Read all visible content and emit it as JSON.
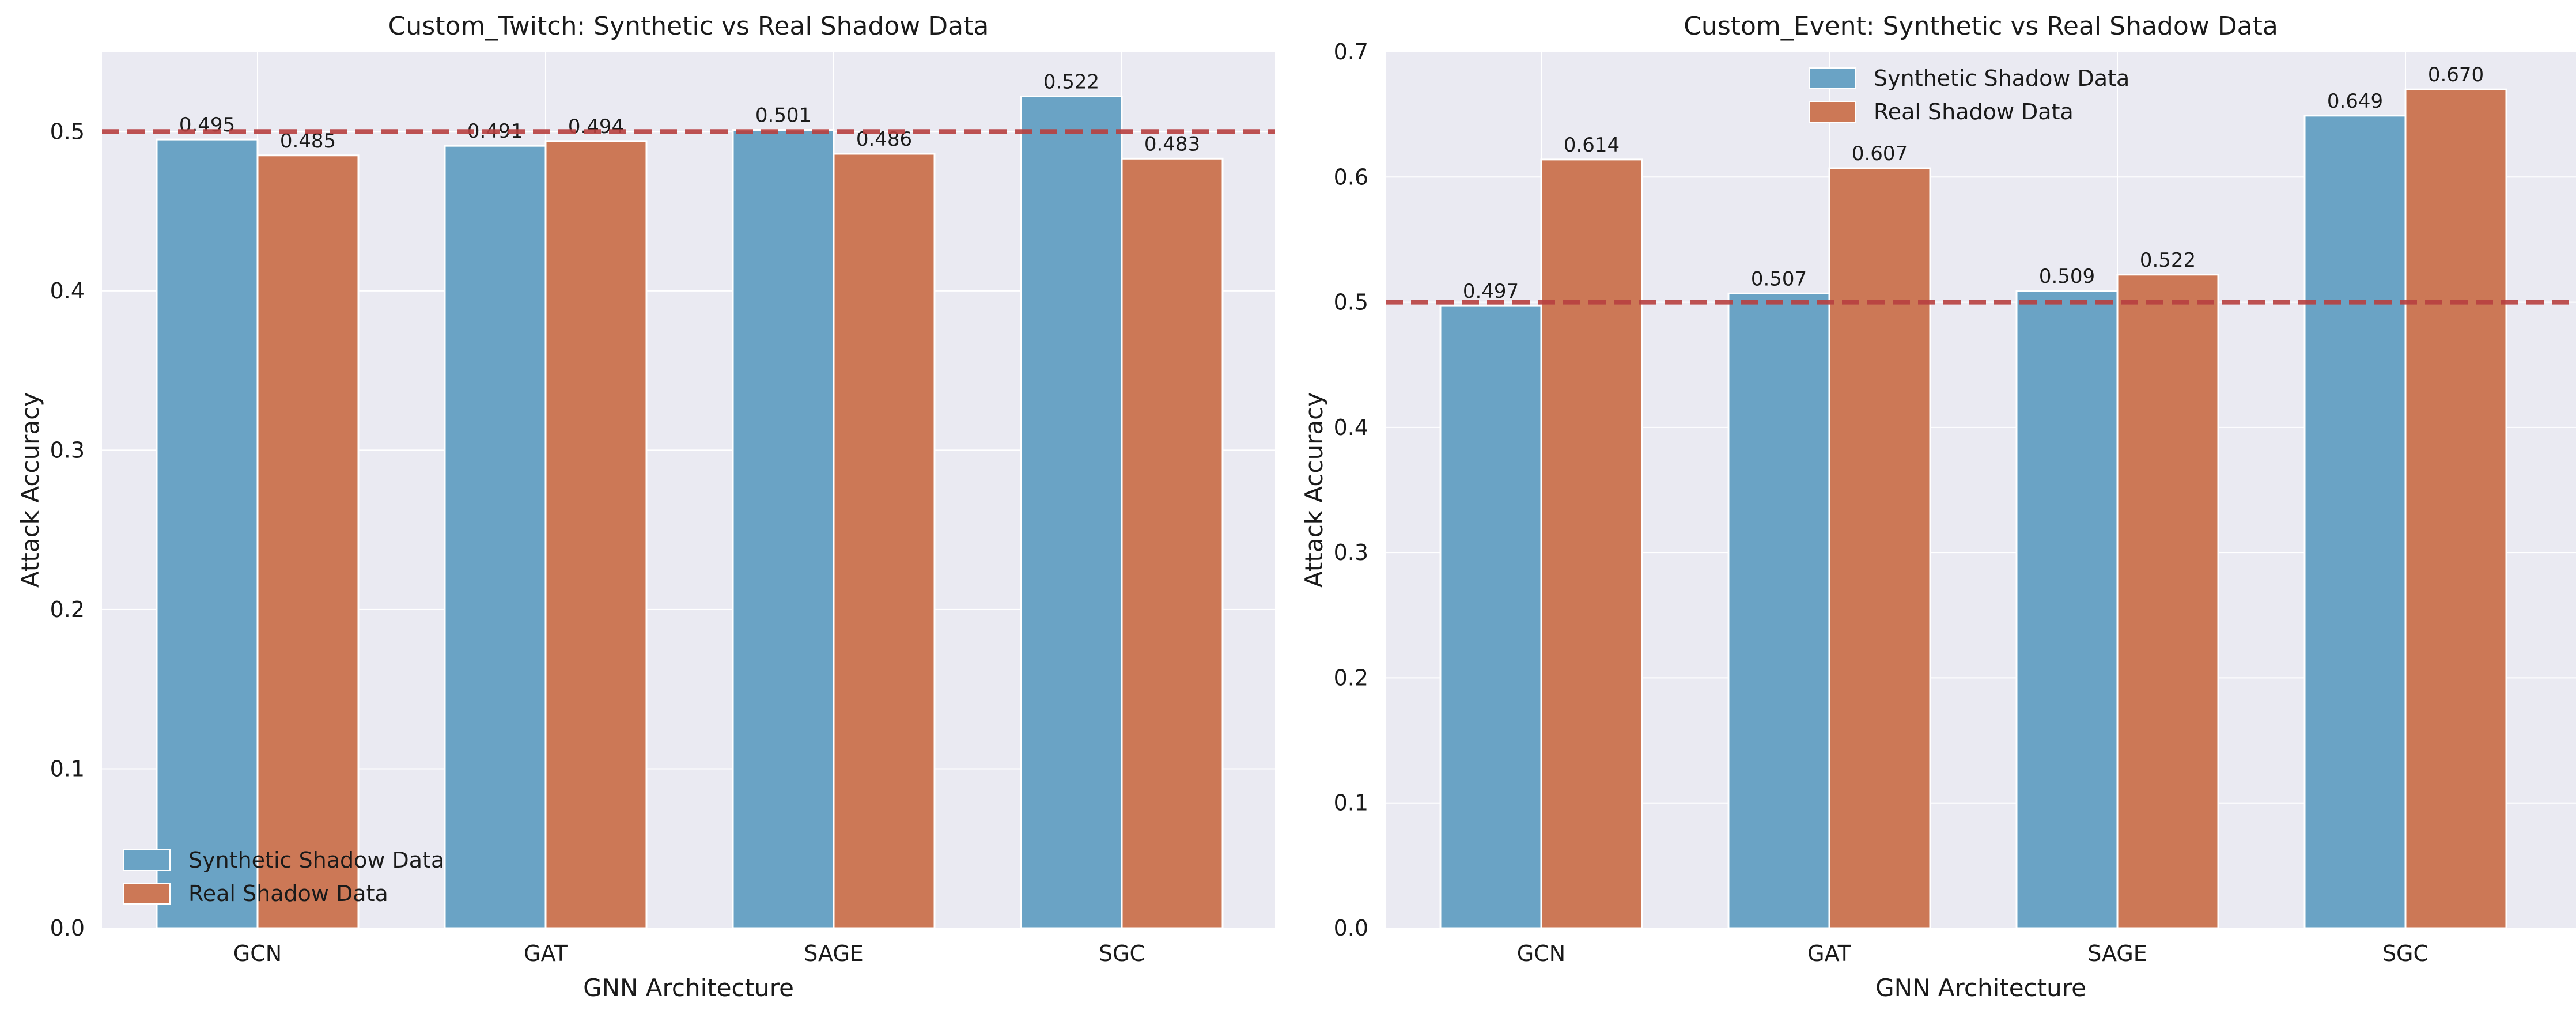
{
  "chart_data": [
    {
      "type": "bar",
      "title": "Custom_Twitch: Synthetic vs Real Shadow Data",
      "xlabel": "GNN Architecture",
      "ylabel": "Attack Accuracy",
      "categories": [
        "GCN",
        "GAT",
        "SAGE",
        "SGC"
      ],
      "series": [
        {
          "name": "Synthetic Shadow Data",
          "values": [
            0.495,
            0.491,
            0.501,
            0.522
          ],
          "labels": [
            "0.495",
            "0.491",
            "0.501",
            "0.522"
          ],
          "color": "#6aa3c5"
        },
        {
          "name": "Real Shadow Data",
          "values": [
            0.485,
            0.494,
            0.486,
            0.483
          ],
          "labels": [
            "0.485",
            "0.494",
            "0.486",
            "0.483"
          ],
          "color": "#cc7856"
        }
      ],
      "ylim": [
        0,
        0.55
      ],
      "yticks": [
        0.0,
        0.1,
        0.2,
        0.3,
        0.4,
        0.5
      ],
      "ytick_labels": [
        "0.0",
        "0.1",
        "0.2",
        "0.3",
        "0.4",
        "0.5"
      ],
      "reference_line": {
        "y": 0.5,
        "color": "#b84040",
        "style": "dashed"
      },
      "grid": true,
      "background": "#eaeaf2",
      "legend_position": "lower-left"
    },
    {
      "type": "bar",
      "title": "Custom_Event: Synthetic vs Real Shadow Data",
      "xlabel": "GNN Architecture",
      "ylabel": "Attack Accuracy",
      "categories": [
        "GCN",
        "GAT",
        "SAGE",
        "SGC"
      ],
      "series": [
        {
          "name": "Synthetic Shadow Data",
          "values": [
            0.497,
            0.507,
            0.509,
            0.649
          ],
          "labels": [
            "0.497",
            "0.507",
            "0.509",
            "0.649"
          ],
          "color": "#6aa3c5"
        },
        {
          "name": "Real Shadow Data",
          "values": [
            0.614,
            0.607,
            0.522,
            0.67
          ],
          "labels": [
            "0.614",
            "0.607",
            "0.522",
            "0.670"
          ],
          "color": "#cc7856"
        }
      ],
      "ylim": [
        0,
        0.7
      ],
      "yticks": [
        0.0,
        0.1,
        0.2,
        0.3,
        0.4,
        0.5,
        0.6,
        0.7
      ],
      "ytick_labels": [
        "0.0",
        "0.1",
        "0.2",
        "0.3",
        "0.4",
        "0.5",
        "0.6",
        "0.7"
      ],
      "reference_line": {
        "y": 0.5,
        "color": "#b84040",
        "style": "dashed"
      },
      "grid": true,
      "background": "#eaeaf2",
      "legend_position": "upper-center"
    }
  ]
}
